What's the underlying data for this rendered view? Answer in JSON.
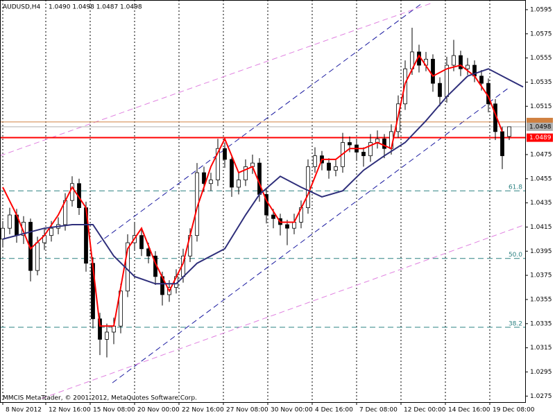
{
  "chart_data": {
    "type": "candlestick",
    "title": "AUDUSD,H4",
    "subtitle": "1.0490 1.0498 1.0487 1.0498",
    "footer": "MMCIS MetaTrader, © 2001-2012, MetaQuotes Software Corp.",
    "candles": [
      [
        1.0405,
        1.042,
        1.0398,
        1.0414
      ],
      [
        1.0414,
        1.0431,
        1.0409,
        1.0425
      ],
      [
        1.0425,
        1.043,
        1.0402,
        1.0408
      ],
      [
        1.0408,
        1.0424,
        1.0401,
        1.0419
      ],
      [
        1.0419,
        1.0422,
        1.037,
        1.0379
      ],
      [
        1.0379,
        1.0407,
        1.0375,
        1.0402
      ],
      [
        1.0402,
        1.0414,
        1.0396,
        1.0408
      ],
      [
        1.0408,
        1.042,
        1.0403,
        1.0414
      ],
      [
        1.0414,
        1.0423,
        1.0409,
        1.0417
      ],
      [
        1.0417,
        1.0443,
        1.0412,
        1.0437
      ],
      [
        1.0437,
        1.0457,
        1.0432,
        1.0451
      ],
      [
        1.0451,
        1.0455,
        1.0425,
        1.0431
      ],
      [
        1.0431,
        1.0436,
        1.0378,
        1.0385
      ],
      [
        1.0385,
        1.039,
        1.0331,
        1.0339
      ],
      [
        1.0339,
        1.0344,
        1.0309,
        1.0322
      ],
      [
        1.0322,
        1.0335,
        1.0307,
        1.0328
      ],
      [
        1.0328,
        1.034,
        1.0318,
        1.0333
      ],
      [
        1.0333,
        1.0368,
        1.0327,
        1.0362
      ],
      [
        1.0362,
        1.0409,
        1.0357,
        1.0402
      ],
      [
        1.0402,
        1.0419,
        1.0396,
        1.0408
      ],
      [
        1.0408,
        1.0413,
        1.0391,
        1.0397
      ],
      [
        1.0397,
        1.0402,
        1.0385,
        1.0391
      ],
      [
        1.0391,
        1.0395,
        1.0367,
        1.0374
      ],
      [
        1.0374,
        1.0378,
        1.035,
        1.0359
      ],
      [
        1.0359,
        1.0371,
        1.0353,
        1.0365
      ],
      [
        1.0365,
        1.038,
        1.036,
        1.0374
      ],
      [
        1.0374,
        1.0397,
        1.0369,
        1.0391
      ],
      [
        1.0391,
        1.0414,
        1.0386,
        1.0408
      ],
      [
        1.0408,
        1.0468,
        1.0403,
        1.046
      ],
      [
        1.046,
        1.0465,
        1.0444,
        1.0451
      ],
      [
        1.0451,
        1.046,
        1.0445,
        1.0454
      ],
      [
        1.0454,
        1.0488,
        1.0449,
        1.048
      ],
      [
        1.048,
        1.0485,
        1.0464,
        1.0471
      ],
      [
        1.0471,
        1.0475,
        1.044,
        1.0448
      ],
      [
        1.0448,
        1.046,
        1.0442,
        1.0454
      ],
      [
        1.0454,
        1.0471,
        1.0449,
        1.0465
      ],
      [
        1.0465,
        1.0475,
        1.0459,
        1.0468
      ],
      [
        1.0468,
        1.0472,
        1.0436,
        1.0442
      ],
      [
        1.0442,
        1.0447,
        1.0418,
        1.0425
      ],
      [
        1.0425,
        1.043,
        1.0414,
        1.0422
      ],
      [
        1.0422,
        1.0426,
        1.0408,
        1.0417
      ],
      [
        1.0417,
        1.0421,
        1.04,
        1.0414
      ],
      [
        1.0414,
        1.0426,
        1.0409,
        1.0419
      ],
      [
        1.0419,
        1.0437,
        1.0414,
        1.0431
      ],
      [
        1.0431,
        1.0471,
        1.0426,
        1.0465
      ],
      [
        1.0465,
        1.0481,
        1.046,
        1.0474
      ],
      [
        1.0474,
        1.0478,
        1.0462,
        1.0468
      ],
      [
        1.0468,
        1.0472,
        1.0455,
        1.0462
      ],
      [
        1.0462,
        1.0471,
        1.0457,
        1.0465
      ],
      [
        1.0465,
        1.0493,
        1.046,
        1.0485
      ],
      [
        1.0485,
        1.049,
        1.0477,
        1.0483
      ],
      [
        1.0483,
        1.0487,
        1.047,
        1.0477
      ],
      [
        1.0477,
        1.0481,
        1.0465,
        1.0474
      ],
      [
        1.0474,
        1.0492,
        1.0469,
        1.0485
      ],
      [
        1.0485,
        1.0495,
        1.048,
        1.0488
      ],
      [
        1.0488,
        1.0492,
        1.0472,
        1.048
      ],
      [
        1.048,
        1.05,
        1.0475,
        1.0494
      ],
      [
        1.0494,
        1.0524,
        1.0489,
        1.0517
      ],
      [
        1.0517,
        1.0553,
        1.0512,
        1.0546
      ],
      [
        1.0546,
        1.058,
        1.0541,
        1.056
      ],
      [
        1.056,
        1.0566,
        1.0543,
        1.0549
      ],
      [
        1.0549,
        1.056,
        1.0544,
        1.0554
      ],
      [
        1.0554,
        1.0558,
        1.0527,
        1.0534
      ],
      [
        1.0534,
        1.0539,
        1.0515,
        1.0523
      ],
      [
        1.0523,
        1.0556,
        1.0518,
        1.0549
      ],
      [
        1.0549,
        1.057,
        1.0544,
        1.0557
      ],
      [
        1.0557,
        1.0561,
        1.054,
        1.0546
      ],
      [
        1.0546,
        1.0555,
        1.0541,
        1.0549
      ],
      [
        1.0549,
        1.0553,
        1.0535,
        1.054
      ],
      [
        1.054,
        1.0545,
        1.0528,
        1.0534
      ],
      [
        1.0534,
        1.0538,
        1.051,
        1.0517
      ],
      [
        1.0517,
        1.0521,
        1.0487,
        1.0494
      ],
      [
        1.0494,
        1.0498,
        1.0463,
        1.0474
      ],
      [
        1.049,
        1.0498,
        1.0487,
        1.0498
      ]
    ],
    "bull_color": "#ffffff",
    "bear_color": "#000000",
    "series": [
      {
        "color": "#ff0000",
        "x": [
          0,
          2,
          4,
          6,
          8,
          10,
          12,
          14,
          16,
          18,
          20,
          22,
          24,
          26,
          28,
          30,
          32,
          34,
          36,
          38,
          40,
          42,
          44,
          46,
          48,
          50,
          52,
          54,
          56,
          58,
          60,
          62,
          64,
          66,
          68,
          70,
          72
        ],
        "values": [
          1.0448,
          1.0425,
          1.0397,
          1.0408,
          1.0425,
          1.0448,
          1.0431,
          1.0333,
          1.0333,
          1.0397,
          1.0414,
          1.0385,
          1.0362,
          1.0385,
          1.0431,
          1.0465,
          1.0488,
          1.046,
          1.0465,
          1.0437,
          1.0419,
          1.0419,
          1.0442,
          1.0471,
          1.0471,
          1.048,
          1.048,
          1.0485,
          1.048,
          1.0534,
          1.0557,
          1.054,
          1.0546,
          1.0549,
          1.054,
          1.0523,
          1.0494
        ]
      },
      {
        "color": "#2e2e7a",
        "x": [
          0,
          6,
          10,
          13,
          16,
          19,
          22,
          25,
          28,
          32,
          35,
          37,
          40,
          43,
          46,
          49,
          52,
          55,
          58,
          61,
          64,
          67,
          70,
          73,
          75
        ],
        "values": [
          1.0405,
          1.0414,
          1.0417,
          1.0417,
          1.0391,
          1.0374,
          1.0368,
          1.0368,
          1.0385,
          1.0397,
          1.0425,
          1.0442,
          1.0457,
          1.0448,
          1.044,
          1.0445,
          1.0462,
          1.0474,
          1.0485,
          1.0503,
          1.0523,
          1.054,
          1.0546,
          1.0537,
          1.0531
        ]
      }
    ],
    "trendlines": [
      {
        "color": "#1a1aa0",
        "x": [
          13.6,
          60.6
        ],
        "values": [
          1.0401,
          1.0601
        ]
      },
      {
        "color": "#1a1aa0",
        "x": [
          15.8,
          73.1
        ],
        "values": [
          1.0286,
          1.0531
        ]
      },
      {
        "color": "#e080e0",
        "x": [
          -0.4,
          62.1
        ],
        "values": [
          1.0474,
          1.0601
        ]
      },
      {
        "color": "#e080e0",
        "x": [
          5.6,
          75.3
        ],
        "values": [
          1.0273,
          1.0417
        ]
      }
    ],
    "fib_levels": [
      {
        "value": 1.0445,
        "label": "61.8"
      },
      {
        "value": 1.0389,
        "label": "50.0"
      },
      {
        "value": 1.0332,
        "label": "38.2"
      }
    ],
    "fib_color": "#2a8080",
    "hlines": [
      {
        "value": 1.0502,
        "color": "#d08040"
      },
      {
        "value": 1.0498,
        "color": "#b0b0b0",
        "label": "1.0498"
      },
      {
        "value": 1.0489,
        "color": "#ff0000",
        "label": "1.0489"
      }
    ],
    "xlim": [
      -0.4,
      75.3
    ],
    "ylim": [
      1.027,
      1.0603
    ],
    "xticks": [
      {
        "value": 0,
        "label": "8 Nov 2012"
      },
      {
        "value": 6.2,
        "label": "12 Nov 16:00"
      },
      {
        "value": 12.6,
        "label": "15 Nov 08:00"
      },
      {
        "value": 19,
        "label": "20 Nov 00:00"
      },
      {
        "value": 25.4,
        "label": "22 Nov 16:00"
      },
      {
        "value": 31.8,
        "label": "27 Nov 08:00"
      },
      {
        "value": 38.2,
        "label": "30 Nov 00:00"
      },
      {
        "value": 44.6,
        "label": "4 Dec 16:00"
      },
      {
        "value": 51,
        "label": "7 Dec 08:00"
      },
      {
        "value": 57.4,
        "label": "12 Dec 00:00"
      },
      {
        "value": 63.8,
        "label": "14 Dec 16:00"
      },
      {
        "value": 70.2,
        "label": "19 Dec 08:00"
      }
    ],
    "yticks": [
      1.0595,
      1.0575,
      1.0555,
      1.0535,
      1.0515,
      1.0475,
      1.0455,
      1.0435,
      1.0415,
      1.0395,
      1.0375,
      1.0355,
      1.0335,
      1.0315,
      1.0295,
      1.0275
    ],
    "grid": true
  }
}
